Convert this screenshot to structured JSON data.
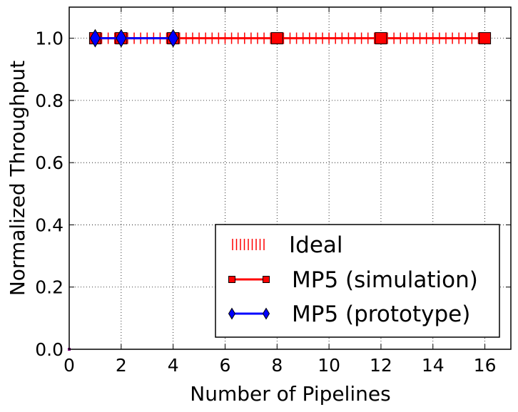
{
  "chart_data": {
    "type": "line",
    "xlabel": "Number of Pipelines",
    "ylabel": "Normalized Throughput",
    "xlim": [
      0,
      17
    ],
    "ylim": [
      0,
      1.1
    ],
    "xticks": [
      "0",
      "2",
      "4",
      "6",
      "8",
      "10",
      "12",
      "14",
      "16"
    ],
    "yticks": [
      "0.0",
      "0.2",
      "0.4",
      "0.6",
      "0.8",
      "1.0"
    ],
    "grid": true,
    "legend_position": "lower-right",
    "series": [
      {
        "name": "Ideal",
        "style": "vertical-tick-markers",
        "color": "#ff0000",
        "x": [
          1,
          1.25,
          1.5,
          1.75,
          2,
          2.25,
          2.5,
          2.75,
          3,
          3.25,
          3.5,
          3.75,
          4,
          4.25,
          4.5,
          4.75,
          5,
          5.25,
          5.5,
          5.75,
          6,
          6.25,
          6.5,
          6.75,
          7,
          7.25,
          7.5,
          7.75,
          8,
          8.25,
          8.5,
          8.75,
          9,
          9.25,
          9.5,
          9.75,
          10,
          10.25,
          10.5,
          10.75,
          11,
          11.25,
          11.5,
          11.75,
          12,
          12.25,
          12.5,
          12.75,
          13,
          13.25,
          13.5,
          13.75,
          14,
          14.25,
          14.5,
          14.75,
          15,
          15.25,
          15.5,
          15.75,
          16
        ],
        "y_constant": 1.0
      },
      {
        "name": "MP5 (simulation)",
        "style": "line-square-markers",
        "color": "#ff0000",
        "x": [
          1,
          2,
          4,
          8,
          12,
          16
        ],
        "y": [
          1.0,
          1.0,
          1.0,
          1.0,
          1.0,
          1.0
        ]
      },
      {
        "name": "MP5 (prototype)",
        "style": "line-diamond-markers",
        "color": "#0000ff",
        "x": [
          1,
          2,
          4
        ],
        "y": [
          1.0,
          1.0,
          1.0
        ]
      }
    ]
  }
}
